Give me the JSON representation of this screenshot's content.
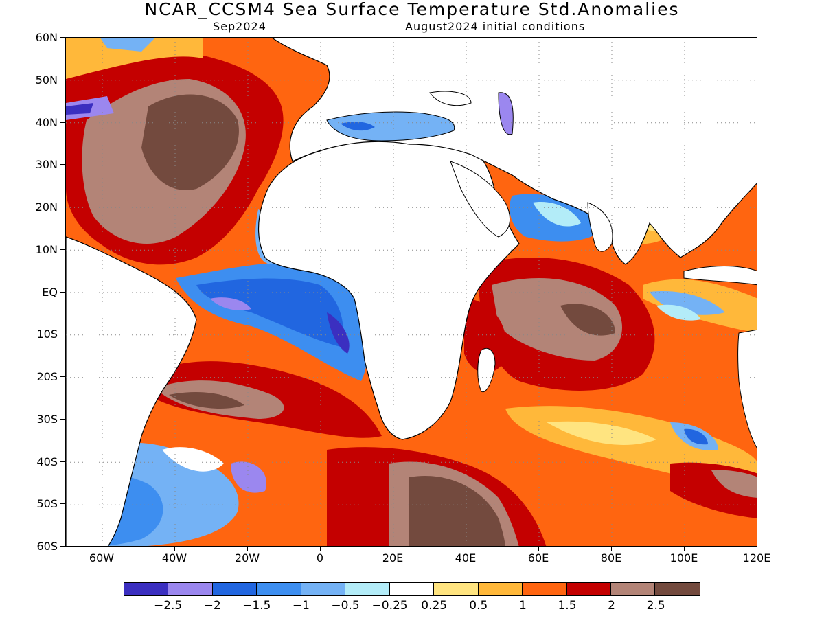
{
  "header": {
    "title": "NCAR_CCSM4 Sea Surface Temperature Std.Anomalies",
    "valid_month": "Sep2024",
    "initial_conditions": "August2024 initial conditions"
  },
  "map": {
    "lon_range": [
      "70W",
      "120E"
    ],
    "lat_range": [
      "60S",
      "60N"
    ],
    "lat_labels": [
      "60N",
      "50N",
      "40N",
      "30N",
      "20N",
      "10N",
      "EQ",
      "10S",
      "20S",
      "30S",
      "40S",
      "50S",
      "60S"
    ],
    "lon_labels": [
      "60W",
      "40W",
      "20W",
      "0",
      "20E",
      "40E",
      "60E",
      "80E",
      "100E",
      "120E"
    ],
    "grid": "dotted"
  },
  "legend": {
    "colors": [
      "#3b2fc0",
      "#9b87ef",
      "#2166e0",
      "#3d8ef0",
      "#74b2f5",
      "#b3ecf8",
      "#ffffff",
      "#ffe480",
      "#ffb83a",
      "#ff6510",
      "#c40000",
      "#b38477",
      "#734a3e"
    ],
    "labels": [
      "−2.5",
      "−2",
      "−1.5",
      "−1",
      "−0.5",
      "−0.25",
      "0.25",
      "0.5",
      "1",
      "1.5",
      "2",
      "2.5"
    ]
  }
}
